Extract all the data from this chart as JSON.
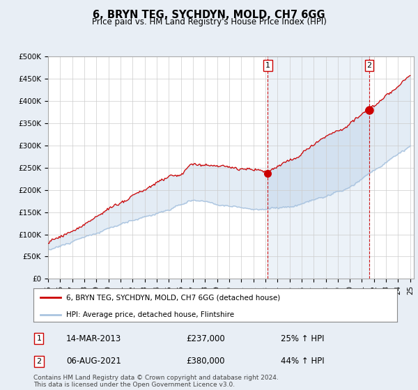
{
  "title": "6, BRYN TEG, SYCHDYN, MOLD, CH7 6GG",
  "subtitle": "Price paid vs. HM Land Registry's House Price Index (HPI)",
  "ylabel_ticks": [
    "£0",
    "£50K",
    "£100K",
    "£150K",
    "£200K",
    "£250K",
    "£300K",
    "£350K",
    "£400K",
    "£450K",
    "£500K"
  ],
  "ytick_values": [
    0,
    50000,
    100000,
    150000,
    200000,
    250000,
    300000,
    350000,
    400000,
    450000,
    500000
  ],
  "ylim": [
    0,
    500000
  ],
  "x_start_year": 1995,
  "x_end_year": 2025,
  "hpi_color": "#aac4e0",
  "price_color": "#cc0000",
  "marker1_year": 2013.2,
  "marker1_price": 237000,
  "marker2_year": 2021.6,
  "marker2_price": 380000,
  "marker1_label": "14-MAR-2013",
  "marker1_value": "£237,000",
  "marker1_hpi": "25% ↑ HPI",
  "marker2_label": "06-AUG-2021",
  "marker2_value": "£380,000",
  "marker2_hpi": "44% ↑ HPI",
  "legend_line1": "6, BRYN TEG, SYCHDYN, MOLD, CH7 6GG (detached house)",
  "legend_line2": "HPI: Average price, detached house, Flintshire",
  "footer": "Contains HM Land Registry data © Crown copyright and database right 2024.\nThis data is licensed under the Open Government Licence v3.0.",
  "background_color": "#e8eef5",
  "plot_bg_color": "#ffffff"
}
